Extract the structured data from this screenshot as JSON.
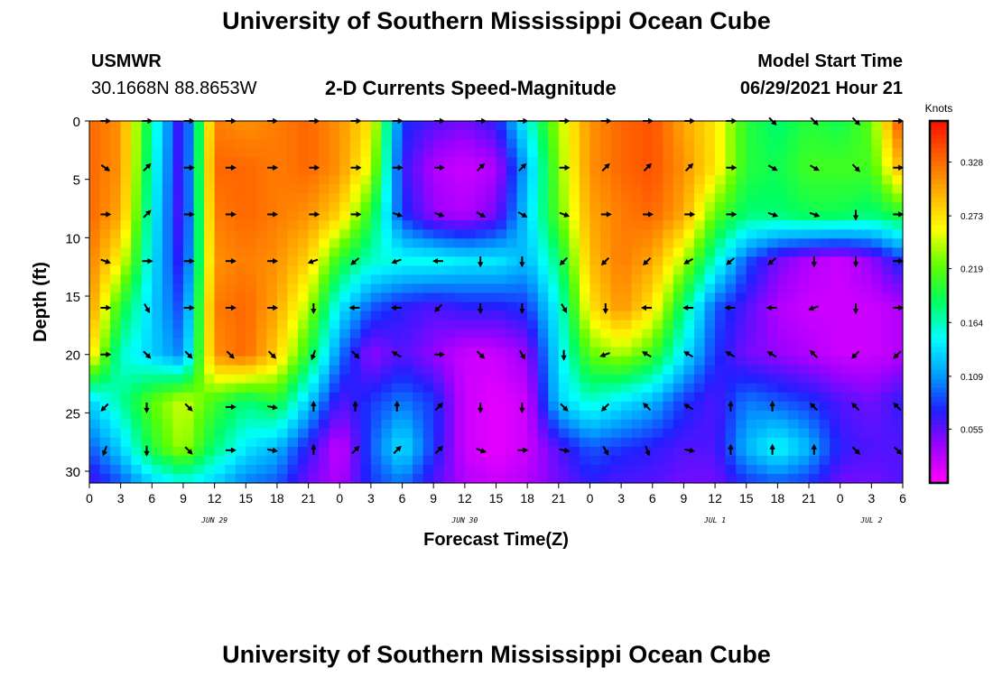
{
  "header": {
    "title": "University of Southern Mississippi Ocean Cube",
    "station_name": "USMWR",
    "station_coords": "30.1668N  88.8653W",
    "plot_title": "2-D Currents Speed-Magnitude",
    "model_label": "Model Start Time",
    "model_time": "06/29/2021 Hour 21"
  },
  "footer": {
    "title": "University of Southern Mississippi Ocean Cube"
  },
  "chart_data": {
    "type": "heatmap",
    "xlabel": "Forecast Time(Z)",
    "ylabel": "Depth (ft)",
    "x_tick_labels": [
      "0",
      "3",
      "6",
      "9",
      "12",
      "15",
      "18",
      "21",
      "0",
      "3",
      "6",
      "9",
      "12",
      "15",
      "18",
      "21",
      "0",
      "3",
      "6",
      "9",
      "12",
      "15",
      "18",
      "21",
      "0",
      "3",
      "6"
    ],
    "date_labels": [
      {
        "text": "JUN 29",
        "hour": 12
      },
      {
        "text": "JUN 30",
        "hour": 36
      },
      {
        "text": "JUL 1",
        "hour": 60
      },
      {
        "text": "JUL 2",
        "hour": 75
      }
    ],
    "x_range_hours": [
      0,
      78
    ],
    "y_ticks": [
      0,
      5,
      10,
      15,
      20,
      25,
      30
    ],
    "ylim": [
      31,
      0
    ],
    "colorbar": {
      "title": "Knots",
      "tick_values": [
        0.328,
        0.273,
        0.219,
        0.164,
        0.109,
        0.055
      ],
      "tick_labels": [
        "0.328",
        "0.273",
        "0.219",
        "0.164",
        "0.109",
        "0.055"
      ],
      "range": [
        0.0,
        0.37
      ],
      "colors": [
        "#ff00ff",
        "#a000ff",
        "#2020ff",
        "#00a0ff",
        "#00ffff",
        "#00ff60",
        "#60ff00",
        "#ffff00",
        "#ffb000",
        "#ff6000",
        "#ff1000"
      ]
    },
    "speed_depths_ft": [
      0,
      4,
      8,
      12,
      16,
      20,
      24,
      28,
      31
    ],
    "speed_hours": [
      0,
      3,
      6,
      9,
      12,
      15,
      18,
      21,
      24,
      27,
      30,
      33,
      36,
      39,
      42,
      45,
      48,
      51,
      54,
      57,
      60,
      63,
      66,
      69,
      72,
      75,
      78
    ],
    "speed_knots": [
      [
        0.33,
        0.31,
        0.17,
        0.05,
        0.32,
        0.31,
        0.32,
        0.33,
        0.31,
        0.27,
        0.08,
        0.06,
        0.05,
        0.07,
        0.15,
        0.24,
        0.31,
        0.33,
        0.34,
        0.3,
        0.27,
        0.2,
        0.18,
        0.2,
        0.19,
        0.22,
        0.35
      ],
      [
        0.33,
        0.31,
        0.16,
        0.05,
        0.33,
        0.33,
        0.32,
        0.33,
        0.31,
        0.25,
        0.07,
        0.03,
        0.02,
        0.03,
        0.12,
        0.23,
        0.31,
        0.33,
        0.34,
        0.31,
        0.27,
        0.2,
        0.19,
        0.21,
        0.21,
        0.21,
        0.3
      ],
      [
        0.33,
        0.3,
        0.15,
        0.05,
        0.32,
        0.33,
        0.32,
        0.31,
        0.28,
        0.2,
        0.08,
        0.04,
        0.03,
        0.05,
        0.13,
        0.22,
        0.3,
        0.32,
        0.33,
        0.3,
        0.22,
        0.18,
        0.18,
        0.19,
        0.19,
        0.18,
        0.2
      ],
      [
        0.32,
        0.26,
        0.14,
        0.06,
        0.31,
        0.32,
        0.31,
        0.28,
        0.2,
        0.16,
        0.15,
        0.15,
        0.14,
        0.14,
        0.12,
        0.18,
        0.29,
        0.32,
        0.3,
        0.24,
        0.16,
        0.09,
        0.05,
        0.03,
        0.02,
        0.04,
        0.08
      ],
      [
        0.31,
        0.2,
        0.13,
        0.08,
        0.32,
        0.33,
        0.3,
        0.24,
        0.14,
        0.09,
        0.07,
        0.06,
        0.07,
        0.07,
        0.08,
        0.15,
        0.27,
        0.31,
        0.27,
        0.18,
        0.09,
        0.06,
        0.03,
        0.02,
        0.02,
        0.02,
        0.03
      ],
      [
        0.28,
        0.16,
        0.13,
        0.1,
        0.31,
        0.33,
        0.28,
        0.2,
        0.1,
        0.04,
        0.06,
        0.04,
        0.02,
        0.02,
        0.04,
        0.14,
        0.22,
        0.24,
        0.21,
        0.14,
        0.08,
        0.05,
        0.04,
        0.03,
        0.02,
        0.02,
        0.03
      ],
      [
        0.13,
        0.17,
        0.22,
        0.25,
        0.21,
        0.18,
        0.2,
        0.13,
        0.06,
        0.08,
        0.1,
        0.08,
        0.02,
        0.01,
        0.02,
        0.13,
        0.16,
        0.14,
        0.12,
        0.08,
        0.06,
        0.1,
        0.09,
        0.08,
        0.06,
        0.05,
        0.07
      ],
      [
        0.09,
        0.13,
        0.2,
        0.24,
        0.18,
        0.14,
        0.12,
        0.07,
        0.02,
        0.09,
        0.14,
        0.08,
        0.02,
        0.01,
        0.02,
        0.06,
        0.09,
        0.08,
        0.07,
        0.06,
        0.06,
        0.12,
        0.15,
        0.12,
        0.07,
        0.06,
        0.06
      ],
      [
        0.06,
        0.09,
        0.13,
        0.15,
        0.13,
        0.1,
        0.09,
        0.05,
        0.03,
        0.08,
        0.1,
        0.06,
        0.03,
        0.02,
        0.03,
        0.05,
        0.07,
        0.06,
        0.06,
        0.05,
        0.05,
        0.08,
        0.09,
        0.08,
        0.05,
        0.05,
        0.06
      ]
    ],
    "vector_depths_ft": [
      0,
      4,
      8,
      12,
      16,
      20,
      24.5,
      28.2
    ],
    "vector_hours": [
      0,
      4,
      8,
      12,
      16,
      20,
      24,
      28,
      32,
      36,
      40,
      44,
      48,
      52,
      56,
      60,
      64,
      68,
      72,
      76
    ],
    "vector_directions_deg": [
      [
        90,
        90,
        90,
        90,
        90,
        90,
        90,
        90,
        90,
        90,
        90,
        90,
        90,
        90,
        90,
        90,
        135,
        135,
        135,
        90
      ],
      [
        125,
        45,
        90,
        90,
        90,
        90,
        90,
        90,
        90,
        45,
        45,
        90,
        45,
        45,
        45,
        90,
        120,
        120,
        135,
        90
      ],
      [
        90,
        45,
        90,
        90,
        90,
        90,
        90,
        110,
        110,
        120,
        120,
        110,
        90,
        90,
        90,
        90,
        110,
        110,
        180,
        90
      ],
      [
        110,
        90,
        90,
        90,
        90,
        250,
        230,
        250,
        270,
        180,
        180,
        225,
        225,
        225,
        240,
        230,
        230,
        180,
        180,
        90
      ],
      [
        90,
        150,
        90,
        90,
        90,
        180,
        270,
        270,
        225,
        180,
        180,
        150,
        180,
        270,
        270,
        270,
        270,
        250,
        180,
        90
      ],
      [
        90,
        135,
        135,
        135,
        135,
        200,
        135,
        300,
        90,
        135,
        150,
        180,
        250,
        300,
        300,
        300,
        300,
        315,
        225,
        225
      ],
      [
        225,
        180,
        135,
        90,
        100,
        0,
        0,
        0,
        45,
        180,
        180,
        135,
        225,
        315,
        300,
        0,
        0,
        315,
        315,
        315
      ],
      [
        200,
        180,
        135,
        90,
        100,
        0,
        45,
        45,
        45,
        110,
        90,
        100,
        150,
        160,
        100,
        0,
        0,
        0,
        135,
        135
      ]
    ]
  }
}
